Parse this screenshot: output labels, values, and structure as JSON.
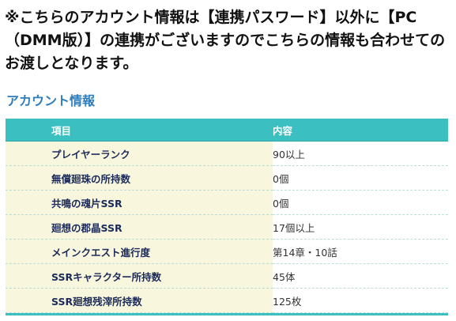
{
  "notice": {
    "text": "※こちらのアカウント情報は【連携パスワード】以外に【PC（DMM版）】の連携がございますのでこちらの情報も合わせてのお渡しとなります。"
  },
  "section": {
    "title": "アカウント情報"
  },
  "table": {
    "headers": {
      "item": "項目",
      "value": "内容"
    },
    "rows": [
      {
        "item": "プレイヤーランク",
        "value": "90以上"
      },
      {
        "item": "無償廻珠の所持数",
        "value": "0個"
      },
      {
        "item": "共鳴の魂片SSR",
        "value": "0個"
      },
      {
        "item": "廻想の郡晶SSR",
        "value": "17個以上"
      },
      {
        "item": "メインクエスト進行度",
        "value": "第14章・10話"
      },
      {
        "item": "SSRキャラクター所持数",
        "value": "45体"
      },
      {
        "item": "SSR廻想残滓所持数",
        "value": "125枚"
      }
    ]
  },
  "colors": {
    "header_bg": "#3bbfc1",
    "item_bg": "#f8f7dd",
    "title": "#2f7dbb"
  }
}
